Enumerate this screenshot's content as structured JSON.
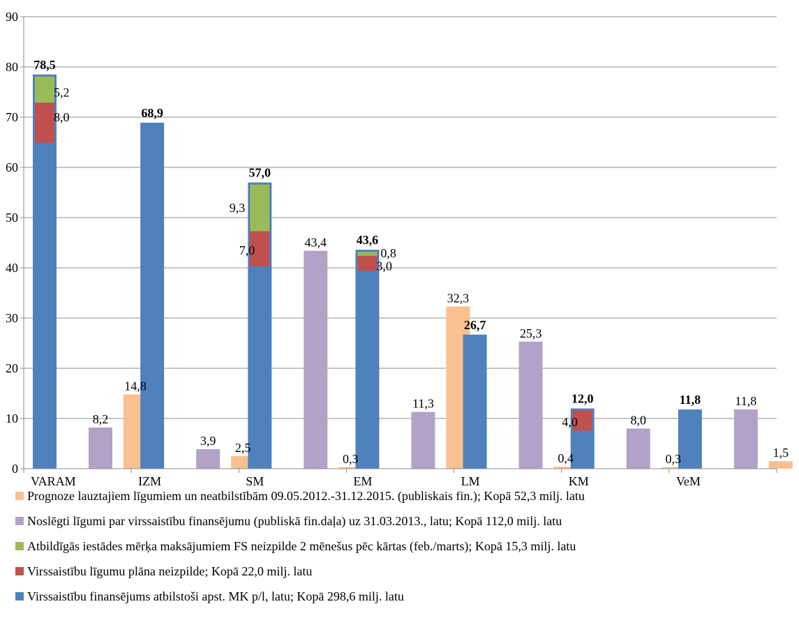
{
  "chart_data": {
    "type": "bar",
    "title": "",
    "xlabel": "",
    "ylabel": "",
    "ylim": [
      0,
      90
    ],
    "yticks": [
      "0",
      "10",
      "20",
      "30",
      "40",
      "50",
      "60",
      "70",
      "80",
      "90"
    ],
    "grid": true,
    "legend_position": "bottom",
    "categories": [
      "VARAM",
      "IZM",
      "SM",
      "EM",
      "LM",
      "KM",
      "VeM"
    ],
    "series": [
      {
        "name": "Virssaistību finansējums atbilstoši apst. MK p/l, latu; Kopā 298,6 milj. latu",
        "color": "#4F81BD",
        "values": [
          78.5,
          68.9,
          57.0,
          43.6,
          26.7,
          12.0,
          11.8
        ],
        "labels": [
          "78,5",
          "68,9",
          "57,0",
          "43,6",
          "26,7",
          "12,0",
          "11,8"
        ]
      },
      {
        "name": "Virssaistību līgumu plāna neizpilde; Kopā 22,0 milj. latu",
        "color": "#C0504D",
        "values": [
          8.0,
          0,
          7.0,
          3.0,
          0,
          4.0,
          0
        ],
        "labels": [
          "8,0",
          "",
          "7,0",
          "3,0",
          "",
          "4,0",
          ""
        ]
      },
      {
        "name": "Atbildīgās iestādes mērķa maksājumiem FS neizpilde 2 mēnešus pēc kārtas (feb./marts); Kopā 15,3 milj. latu",
        "color": "#9BBB59",
        "values": [
          5.2,
          0,
          9.3,
          0.8,
          0,
          0,
          0
        ],
        "labels": [
          "5,2",
          "",
          "9,3",
          "0,8",
          "",
          "",
          ""
        ]
      },
      {
        "name": "Noslēgti līgumi par virssaistību finansējumu (publiskā fin.daļa) uz 31.03.2013., latu; Kopā 112,0 milj. latu",
        "color": "#B3A2C7",
        "values": [
          8.2,
          3.9,
          43.4,
          11.3,
          25.3,
          8.0,
          11.8
        ],
        "labels": [
          "8,2",
          "3,9",
          "43,4",
          "11,3",
          "25,3",
          "8,0",
          "11,8"
        ]
      },
      {
        "name": "Prognoze lauztajiem līgumiem un neatbilstībām 09.05.2012.-31.12.2015. (publiskais fin.); Kopā 52,3 milj. latu",
        "color": "#FAC090",
        "values": [
          14.8,
          2.5,
          0.3,
          32.3,
          0.4,
          0.3,
          1.5
        ],
        "labels": [
          "14,8",
          "2,5",
          "0,3",
          "32,3",
          "0,4",
          "0,3",
          "1,5"
        ]
      }
    ],
    "legend_order": [
      4,
      3,
      2,
      1,
      0
    ]
  }
}
